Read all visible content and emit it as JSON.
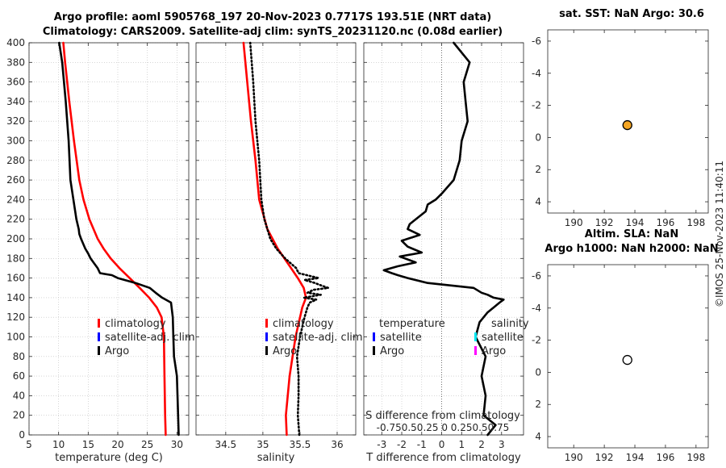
{
  "titles": {
    "main_line1": "Argo profile: aoml 5905768_197 20-Nov-2023 0.7717S 193.51E (NRT data)",
    "main_line2": "Climatology: CARS2009. Satellite-adj clim: synTS_20231120.nc (0.08d earlier)",
    "sst": "sat. SST: NaN Argo: 30.6",
    "sla_line1": "Altim. SLA: NaN",
    "sla_line2": "Argo h1000: NaN h2000: NaN",
    "watermark": "©IMOS 25-Nov-2023 11:40:11"
  },
  "colors": {
    "climatology": "#ff0000",
    "satellite": "#0000ff",
    "argo": "#000000",
    "satellite_s": "#00e5ee",
    "argo_s": "#ff00ff",
    "marker_sst": "#f5a623"
  },
  "chart_data": [
    {
      "id": "temperature",
      "type": "line",
      "xlabel": "temperature (deg C)",
      "ylim": [
        400,
        0
      ],
      "xlim": [
        5,
        32
      ],
      "xticks": [
        5,
        10,
        15,
        20,
        25,
        30
      ],
      "yticks": [
        0,
        20,
        40,
        60,
        80,
        100,
        120,
        140,
        160,
        180,
        200,
        220,
        240,
        260,
        280,
        300,
        320,
        340,
        360,
        380,
        400
      ],
      "legend": [
        "climatology",
        "satellite-adj. clim",
        "Argo"
      ],
      "series": [
        {
          "name": "climatology",
          "style": "solid-red",
          "depth": [
            0,
            20,
            60,
            100,
            120,
            130,
            140,
            150,
            160,
            170,
            180,
            190,
            200,
            220,
            240,
            260,
            300,
            340,
            380,
            400
          ],
          "values": [
            28.1,
            28.0,
            27.9,
            27.8,
            27.4,
            26.6,
            25.3,
            23.7,
            22.0,
            20.3,
            18.8,
            17.6,
            16.6,
            15.2,
            14.2,
            13.5,
            12.6,
            11.8,
            11.1,
            10.8
          ]
        },
        {
          "name": "Argo",
          "style": "solid-black",
          "depth": [
            0,
            20,
            60,
            80,
            100,
            120,
            135,
            140,
            145,
            150,
            155,
            160,
            163,
            165,
            170,
            175,
            180,
            185,
            190,
            200,
            205,
            210,
            220,
            240,
            260,
            300,
            340,
            380,
            400
          ],
          "values": [
            30.3,
            30.2,
            30.0,
            29.5,
            29.4,
            29.3,
            29.0,
            27.5,
            26.4,
            25.4,
            23.0,
            20.0,
            19.0,
            17.0,
            16.6,
            16.0,
            15.4,
            15.0,
            14.5,
            13.8,
            13.5,
            13.4,
            13.0,
            12.5,
            12.0,
            11.7,
            11.2,
            10.6,
            10.1
          ]
        }
      ]
    },
    {
      "id": "salinity",
      "type": "line",
      "xlabel": "salinity",
      "ylim": [
        400,
        0
      ],
      "xlim": [
        34.1,
        36.25
      ],
      "xticks": [
        34.5,
        35,
        35.5,
        36
      ],
      "xtick_labels": [
        "34.5",
        "35",
        "35.5",
        "36"
      ],
      "legend": [
        "climatology",
        "satellite-adj. clim",
        "Argo"
      ],
      "series": [
        {
          "name": "climatology",
          "style": "solid-red",
          "depth": [
            0,
            20,
            60,
            100,
            130,
            140,
            150,
            160,
            170,
            190,
            210,
            240,
            280,
            320,
            360,
            400
          ],
          "values": [
            35.32,
            35.31,
            35.36,
            35.44,
            35.53,
            35.58,
            35.55,
            35.47,
            35.38,
            35.2,
            35.06,
            34.95,
            34.9,
            34.84,
            34.79,
            34.74
          ]
        },
        {
          "name": "Argo",
          "style": "dotted-black",
          "depth": [
            0,
            20,
            40,
            60,
            80,
            100,
            120,
            130,
            135,
            138,
            140,
            143,
            145,
            148,
            150,
            152,
            155,
            158,
            160,
            165,
            170,
            180,
            190,
            200,
            220,
            240,
            280,
            320,
            360,
            400
          ],
          "values": [
            35.49,
            35.47,
            35.48,
            35.48,
            35.46,
            35.5,
            35.56,
            35.6,
            35.63,
            35.72,
            35.55,
            35.78,
            35.6,
            35.68,
            35.88,
            35.8,
            35.7,
            35.56,
            35.75,
            35.48,
            35.45,
            35.3,
            35.18,
            35.1,
            35.02,
            34.98,
            34.95,
            34.9,
            34.87,
            34.83
          ]
        }
      ]
    },
    {
      "id": "difference",
      "type": "line",
      "xlabel": "T difference from climatology",
      "ylim": [
        400,
        0
      ],
      "xlim": [
        -3.9,
        4.1
      ],
      "xticks": [
        -3,
        -2,
        -1,
        0,
        1,
        2,
        3
      ],
      "xtick_labels": [
        "-3",
        "-2",
        "-1",
        "0",
        "1",
        "2",
        "3"
      ],
      "secondary_axis": {
        "label": "S difference from climatology",
        "ticks": "-0.750.50.25  0  0.250.50.75"
      },
      "legend_left": {
        "title": "temperature",
        "items": [
          "satellite",
          "Argo"
        ]
      },
      "legend_right": {
        "title": "salinity",
        "items": [
          "satellite",
          "Argo"
        ]
      },
      "series": [
        {
          "name": "T difference",
          "style": "solid-black",
          "depth": [
            0,
            10,
            20,
            40,
            60,
            80,
            100,
            115,
            120,
            125,
            130,
            135,
            138,
            140,
            143,
            145,
            150,
            155,
            160,
            163,
            165,
            168,
            172,
            176,
            182,
            186,
            192,
            198,
            204,
            210,
            215,
            220,
            228,
            235,
            240,
            246,
            260,
            280,
            300,
            320,
            340,
            360,
            380,
            400
          ],
          "values": [
            2.3,
            2.7,
            2.1,
            2.2,
            2.0,
            2.2,
            1.7,
            1.9,
            2.1,
            2.3,
            2.6,
            2.9,
            3.1,
            2.6,
            2.3,
            2.0,
            1.6,
            -0.7,
            -1.7,
            -2.2,
            -2.5,
            -2.9,
            -2.2,
            -1.3,
            -2.1,
            -1.0,
            -1.7,
            -2.0,
            -1.1,
            -1.7,
            -1.6,
            -1.3,
            -0.8,
            -0.7,
            -0.3,
            0.0,
            0.6,
            0.9,
            1.0,
            1.3,
            1.2,
            1.1,
            1.4,
            0.6
          ]
        }
      ]
    },
    {
      "id": "sst_panel",
      "type": "scatter",
      "xlim": [
        188.3,
        198.8
      ],
      "ylim": [
        -6.7,
        4.7
      ],
      "xticks": [
        190,
        192,
        194,
        196,
        198
      ],
      "yticks": [
        -6,
        -4,
        -2,
        0,
        2,
        4
      ],
      "points": [
        {
          "x": 193.51,
          "y": -0.77,
          "fill": "orange"
        }
      ]
    },
    {
      "id": "sla_panel",
      "type": "scatter",
      "xlim": [
        188.3,
        198.8
      ],
      "ylim": [
        -6.7,
        4.7
      ],
      "xticks": [
        190,
        192,
        194,
        196,
        198
      ],
      "yticks": [
        -6,
        -4,
        -2,
        0,
        2,
        4
      ],
      "points": [
        {
          "x": 193.51,
          "y": -0.77,
          "fill": "white"
        }
      ]
    }
  ]
}
